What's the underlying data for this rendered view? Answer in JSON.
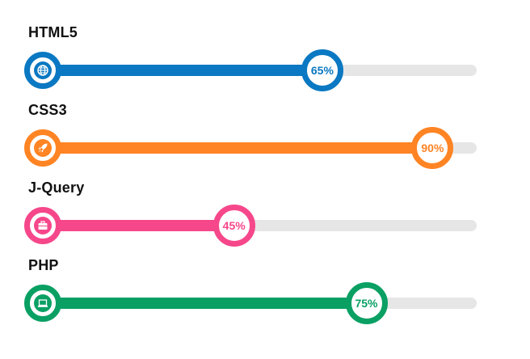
{
  "skills": [
    {
      "name": "HTML5",
      "percent_label": "65%",
      "percent": 65,
      "color": "#0a78c2",
      "icon": "globe-icon"
    },
    {
      "name": "CSS3",
      "percent_label": "90%",
      "percent": 90,
      "color": "#ff8424",
      "icon": "rocket-icon"
    },
    {
      "name": "J-Query",
      "percent_label": "45%",
      "percent": 45,
      "color": "#f6478b",
      "icon": "briefcase-icon"
    },
    {
      "name": "PHP",
      "percent_label": "75%",
      "percent": 75,
      "color": "#0aa064",
      "icon": "laptop-icon"
    }
  ]
}
